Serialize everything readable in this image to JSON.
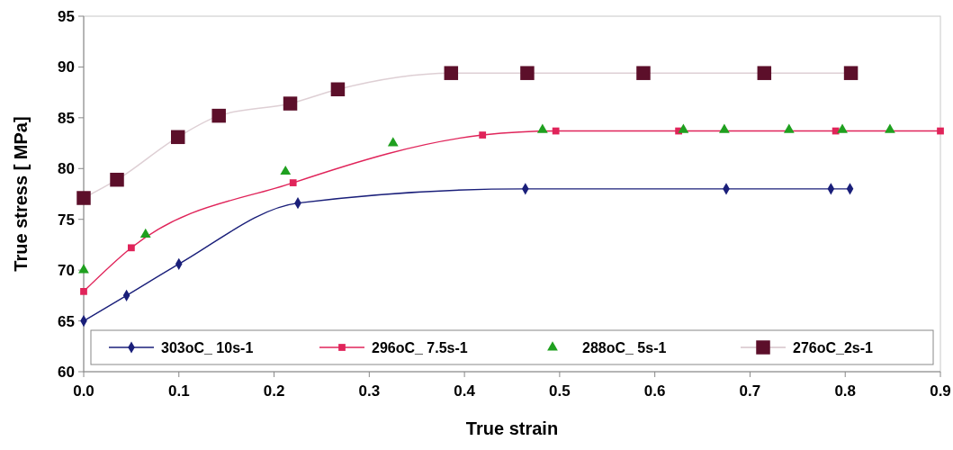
{
  "chart_data": {
    "type": "line",
    "xlabel": "True strain",
    "ylabel": "True stress [ MPa]",
    "xlim": [
      0,
      0.9
    ],
    "xticks": [
      {
        "value": 0,
        "label": "0.0"
      },
      0.1,
      0.2,
      0.3,
      0.4,
      0.5,
      0.6,
      0.7,
      0.8,
      0.9
    ],
    "ylim": [
      60,
      95
    ],
    "yticks": [
      60,
      65,
      70,
      75,
      80,
      85,
      90,
      95
    ],
    "grid": false,
    "legend": "bottom",
    "series": [
      {
        "name": "303oC_ 10s-1",
        "type": "line",
        "marker": "diamond",
        "color": "#1a1f7a",
        "x": [
          0,
          0.045,
          0.1,
          0.225,
          0.464,
          0.675,
          0.785,
          0.805
        ],
        "values": [
          65,
          67.5,
          70.6,
          76.6,
          78,
          78,
          78,
          78
        ]
      },
      {
        "name": "296oC_ 7.5s-1",
        "type": "line",
        "marker": "square",
        "color": "#e0245a",
        "x": [
          0,
          0.05,
          0.22,
          0.419,
          0.496,
          0.625,
          0.79,
          0.9
        ],
        "values": [
          67.9,
          72.2,
          78.6,
          83.3,
          83.7,
          83.7,
          83.7,
          83.7
        ]
      },
      {
        "name": "288oC_ 5s-1",
        "type": "scatter",
        "marker": "triangle",
        "color": "#1fa01f",
        "x": [
          0,
          0.065,
          0.212,
          0.325,
          0.482,
          0.63,
          0.673,
          0.741,
          0.797,
          0.847
        ],
        "values": [
          70,
          73.5,
          79.7,
          82.5,
          83.8,
          83.8,
          83.8,
          83.8,
          83.8,
          83.8
        ]
      },
      {
        "name": "276oC_2s-1",
        "type": "line",
        "marker": "square",
        "color": "#5c0f2a",
        "x": [
          0,
          0.035,
          0.099,
          0.142,
          0.217,
          0.267,
          0.386,
          0.466,
          0.588,
          0.715,
          0.806
        ],
        "values": [
          77.1,
          78.9,
          83.1,
          85.2,
          86.4,
          87.8,
          89.4,
          89.4,
          89.4,
          89.4,
          89.4
        ]
      }
    ]
  }
}
